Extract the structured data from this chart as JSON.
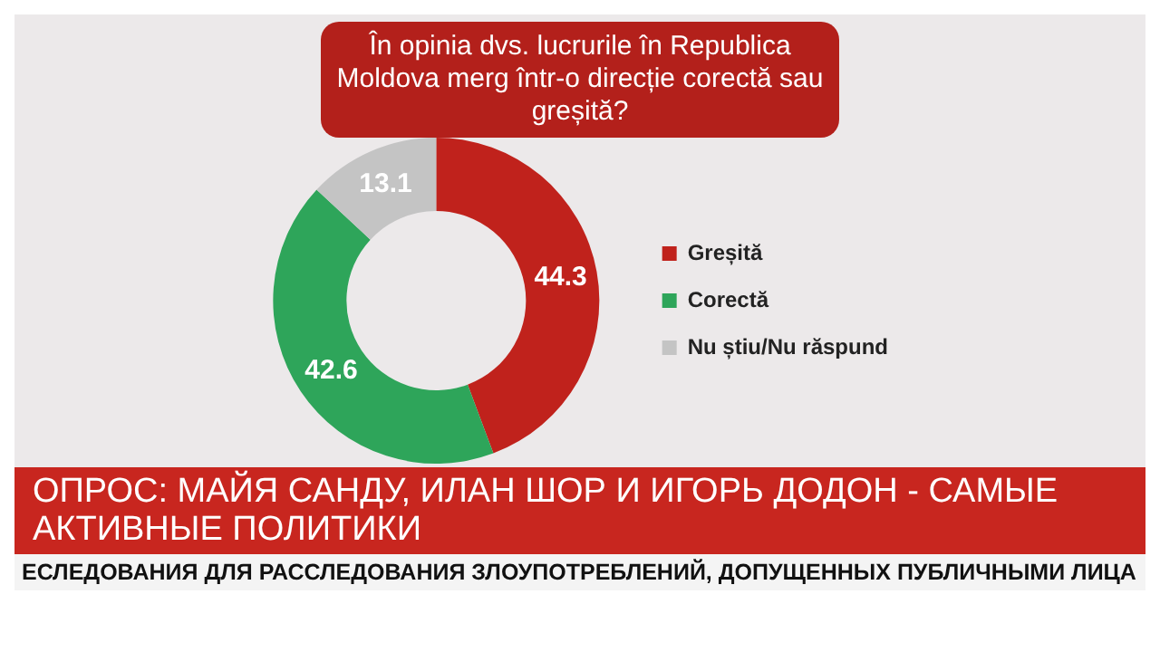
{
  "chart_data": {
    "type": "donut",
    "title": "În opinia dvs. lucrurile în Republica Moldova merg într-o direcție corectă sau greșită?",
    "categories": [
      "Greșită",
      "Corectă",
      "Nu știu/Nu răspund"
    ],
    "values": [
      44.3,
      42.6,
      13.1
    ],
    "colors": [
      "#c0221c",
      "#2ea55a",
      "#c4c4c4"
    ],
    "data_labels": true,
    "legend": "right",
    "annotations": [
      "ОПРОС: МАЙЯ САНДУ, ИЛАН ШОР И ИГОРЬ ДОДОН - САМЫЕ АКТИВНЫЕ ПОЛИТИКИ",
      "ЕСЛЕДОВАНИЯ ДЛЯ РАССЛЕДОВАНИЯ ЗЛОУПОТРЕБЛЕНИЙ, ДОПУЩЕННЫХ ПУБЛИЧНЫМИ ЛИЦА"
    ]
  }
}
